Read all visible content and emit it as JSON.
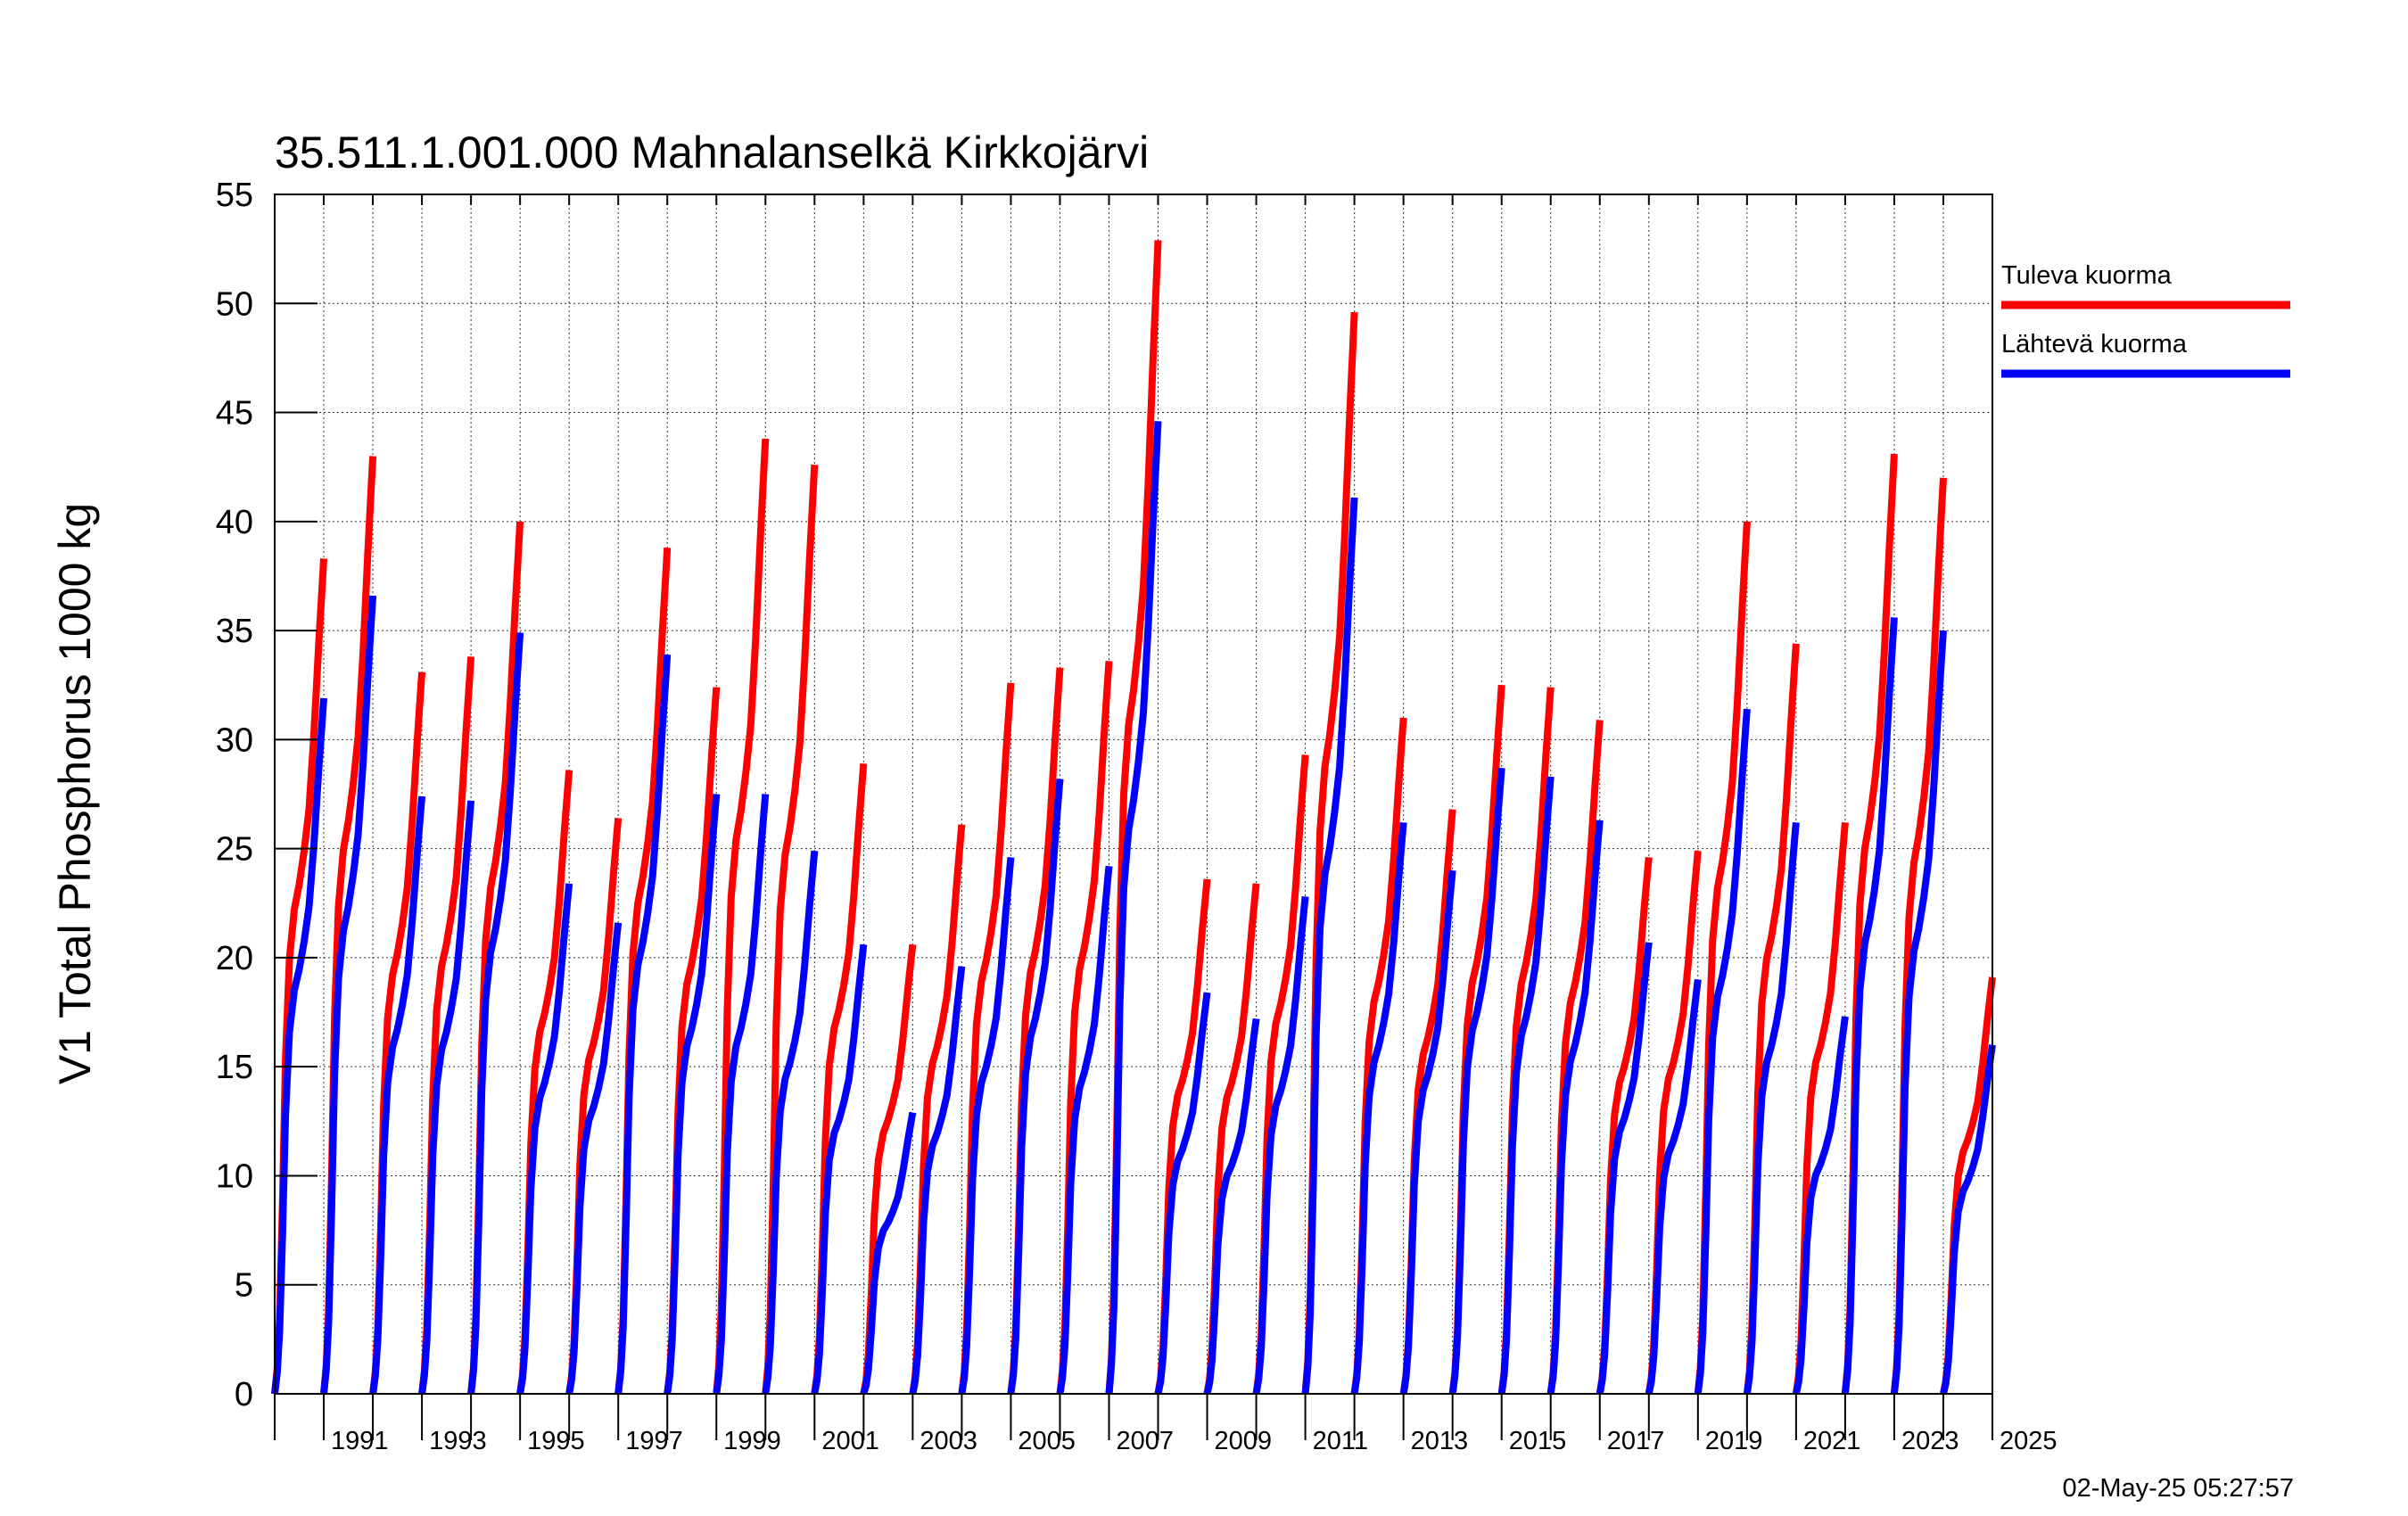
{
  "title": "35.511.1.001.000 Mahnalanselkä Kirkkojärvi",
  "timestamp": "02-May-25 05:27:57",
  "chart_data": {
    "type": "line",
    "title": "35.511.1.001.000 Mahnalanselkä Kirkkojärvi",
    "ylabel": "V1 Total Phosphorus 1000 kg",
    "xlabel": "",
    "ylim": [
      0,
      55
    ],
    "xlim": [
      1990,
      2025
    ],
    "yticks": [
      "0",
      "5",
      "10",
      "15",
      "20",
      "25",
      "30",
      "35",
      "40",
      "45",
      "50",
      "55"
    ],
    "xtick_labels": [
      "1991",
      "1993",
      "1995",
      "1997",
      "1999",
      "2001",
      "2003",
      "2005",
      "2007",
      "2009",
      "2011",
      "2013",
      "2015",
      "2017",
      "2019",
      "2021",
      "2023",
      "2025"
    ],
    "grid": true,
    "legend_position": "right",
    "series": [
      {
        "name": "Tuleva kuorma",
        "color": "#ff0000",
        "annual_max": [
          38.3,
          43.0,
          33.1,
          33.8,
          40.0,
          28.6,
          26.4,
          38.8,
          32.4,
          43.8,
          42.6,
          28.9,
          20.6,
          26.1,
          32.6,
          33.3,
          33.6,
          52.9,
          23.6,
          23.4,
          29.3,
          49.6,
          31.0,
          26.8,
          32.5,
          32.4,
          30.9,
          24.6,
          24.9,
          40.0,
          34.4,
          26.2,
          43.1,
          42.0,
          19.1
        ]
      },
      {
        "name": "Lähtevä kuorma",
        "color": "#0000ff",
        "annual_max": [
          31.9,
          36.6,
          27.4,
          27.2,
          34.9,
          23.4,
          21.6,
          33.9,
          27.5,
          27.5,
          24.9,
          20.6,
          12.9,
          19.6,
          24.6,
          28.2,
          24.2,
          44.6,
          18.4,
          17.2,
          22.8,
          41.1,
          26.2,
          24.0,
          28.7,
          28.3,
          26.3,
          20.7,
          19.0,
          31.4,
          26.2,
          17.3,
          35.6,
          35.0,
          16.0
        ]
      }
    ]
  }
}
